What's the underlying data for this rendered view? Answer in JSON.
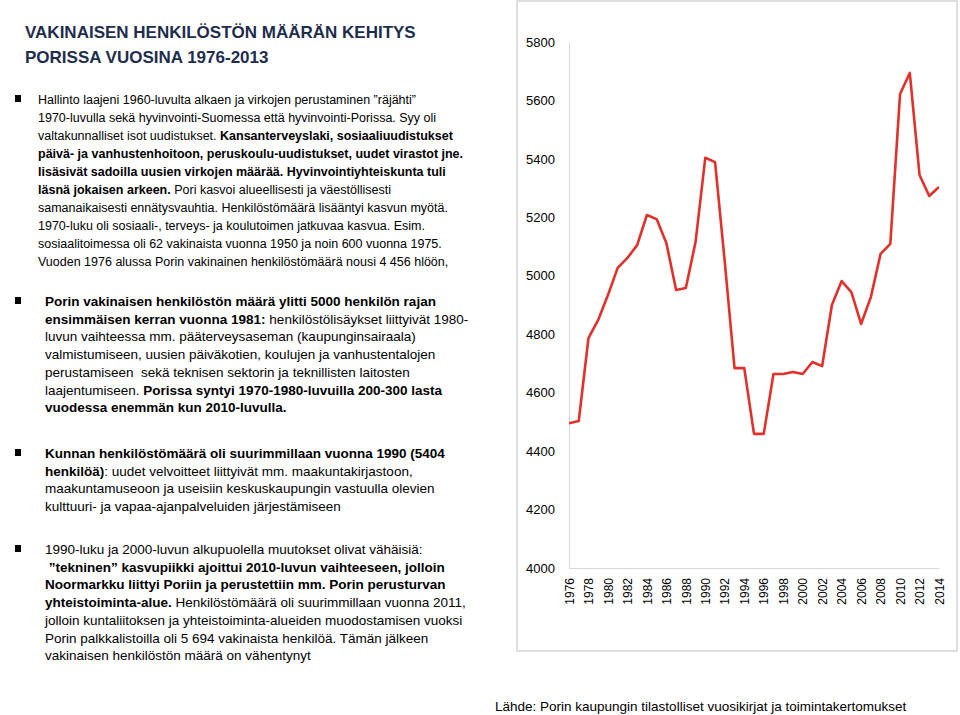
{
  "chart_data": {
    "type": "line",
    "title": [
      "VAKINAISEN HENKILÖSTÖN MÄÄRÄN KEHITYS",
      "PORISSA VUOSINA 1976-2013"
    ],
    "x": [
      1976,
      1977,
      1978,
      1979,
      1980,
      1981,
      1982,
      1983,
      1984,
      1985,
      1986,
      1987,
      1988,
      1989,
      1990,
      1991,
      1992,
      1993,
      1994,
      1995,
      1996,
      1997,
      1998,
      1999,
      2000,
      2001,
      2002,
      2003,
      2004,
      2005,
      2006,
      2007,
      2008,
      2009,
      2010,
      2011,
      2012,
      2013,
      2014
    ],
    "values": [
      4495,
      4503,
      4787,
      4849,
      4934,
      5027,
      5061,
      5105,
      5208,
      5194,
      5112,
      4951,
      4958,
      5116,
      5404,
      5389,
      5047,
      4684,
      4684,
      4459,
      4459,
      4664,
      4664,
      4671,
      4664,
      4705,
      4691,
      4900,
      4982,
      4944,
      4835,
      4927,
      5075,
      5109,
      5622,
      5694,
      5345,
      5273,
      5304
    ],
    "color": "#e0312b",
    "xlim": [
      1976,
      2014
    ],
    "xticks": [
      1976,
      1978,
      1980,
      1982,
      1984,
      1986,
      1988,
      1990,
      1992,
      1994,
      1996,
      1998,
      2000,
      2002,
      2004,
      2006,
      2008,
      2010,
      2012,
      2014
    ],
    "ylim": [
      4000,
      5800
    ],
    "yticks": [
      4000,
      4200,
      4400,
      4600,
      4800,
      5000,
      5200,
      5400,
      5600,
      5800
    ],
    "grid": false
  },
  "notes": {
    "paragraphs": [
      {
        "lines": [
          [
            {
              "text": "Hallinto laajeni 1960-luvulta alkaen ja virkojen perustaminen ”räjähti”",
              "bold": false
            }
          ],
          [
            {
              "text": "1970-luvulla sekä hyvinvointi-Suomessa että hyvinvointi-Porissa. Syy oli",
              "bold": false
            }
          ],
          [
            {
              "text": "valtakunnalliset isot uudistukset. ",
              "bold": false
            },
            {
              "text": "Kansanterveyslaki, sosiaaliuudistukset",
              "bold": true
            }
          ],
          [
            {
              "text": "päivä- ja vanhustenhoitoon, peruskoulu-uudistukset, uudet virastot jne.",
              "bold": true
            }
          ],
          [
            {
              "text": "lisäsivät sadoilla uusien virkojen määrää. Hyvinvointiyhteiskunta tuli",
              "bold": true
            }
          ],
          [
            {
              "text": "läsnä jokaisen arkeen.",
              "bold": true
            },
            {
              "text": " Pori kasvoi alueellisesti ja väestöllisesti",
              "bold": false
            }
          ],
          [
            {
              "text": "samanaikaisesti ennätysvauhtia. Henkilöstömäärä lisääntyi kasvun myötä.",
              "bold": false
            }
          ],
          [
            {
              "text": "1970-luku oli sosiaali-, terveys- ja koulutoimen jatkuvaa kasvua. Esim.",
              "bold": false
            }
          ],
          [
            {
              "text": "sosiaalitoimessa oli 62 vakinaista vuonna 1950 ja noin 600 vuonna 1975.",
              "bold": false
            }
          ],
          [
            {
              "text": "Vuoden 1976 alussa Porin vakinainen henkilöstömäärä nousi 4 456 hlöön,",
              "bold": false
            }
          ]
        ]
      },
      {
        "lines": [
          [
            {
              "text": "Porin vakinaisen henkilöstön määrä ylitti 5000 henkilön rajan",
              "bold": true
            }
          ],
          [
            {
              "text": "ensimmäisen kerran vuonna 1981:",
              "bold": true
            },
            {
              "text": " henkilöstölisäykset liittyivät 1980-",
              "bold": false
            }
          ],
          [
            {
              "text": "luvun vaihteessa mm. pääterveysaseman (kaupunginsairaala)",
              "bold": false
            }
          ],
          [
            {
              "text": "valmistumiseen, uusien päiväkotien, koulujen ja vanhustentalojen",
              "bold": false
            }
          ],
          [
            {
              "text": "perustamiseen  sekä teknisen sektorin ja teknillisten laitosten",
              "bold": false
            }
          ],
          [
            {
              "text": "laajentumiseen. ",
              "bold": false
            },
            {
              "text": "Porissa syntyi 1970-1980-luvuilla 200-300 lasta",
              "bold": true
            }
          ],
          [
            {
              "text": "vuodessa enemmän kun 2010-luvulla.",
              "bold": true
            }
          ]
        ]
      },
      {
        "lines": [
          [
            {
              "text": "Kunnan henkilöstömäärä oli suurimmillaan vuonna 1990 (5404",
              "bold": true
            }
          ],
          [
            {
              "text": "henkilöä)",
              "bold": true
            },
            {
              "text": ": uudet velvoitteet liittyivät mm. maakuntakirjastoon,",
              "bold": false
            }
          ],
          [
            {
              "text": "maakuntamuseoon ja useisiin keskuskaupungin vastuulla olevien",
              "bold": false
            }
          ],
          [
            {
              "text": "kulttuuri- ja vapaa-ajanpalveluiden järjestämiseen",
              "bold": false
            }
          ]
        ]
      },
      {
        "lines": [
          [
            {
              "text": "1990-luku ja 2000-luvun alkupuolella muutokset olivat vähäisiä:",
              "bold": false
            }
          ],
          [
            {
              "text": " ”tekninen” kasvupiikki ajoittui 2010-luvun vaihteeseen, jolloin",
              "bold": true
            }
          ],
          [
            {
              "text": "Noormarkku liittyi Poriin ja perustettiin mm. Porin perusturvan",
              "bold": true
            }
          ],
          [
            {
              "text": "yhteistoiminta-alue.",
              "bold": true
            },
            {
              "text": " Henkilöstömäärä oli suurimmillaan vuonna 2011,",
              "bold": false
            }
          ],
          [
            {
              "text": "jolloin kuntaliitoksen ja yhteistoiminta-alueiden muodostamisen vuoksi",
              "bold": false
            }
          ],
          [
            {
              "text": "Porin palkkalistoilla oli 5 694 vakinaista henkilöä. Tämän jälkeen",
              "bold": false
            }
          ],
          [
            {
              "text": "vakinaisen henkilöstön määrä on vähentynyt",
              "bold": false
            }
          ]
        ]
      }
    ]
  },
  "source": "Lähde: Porin kaupungin tilastolliset vuosikirjat ja toimintakertomukset"
}
